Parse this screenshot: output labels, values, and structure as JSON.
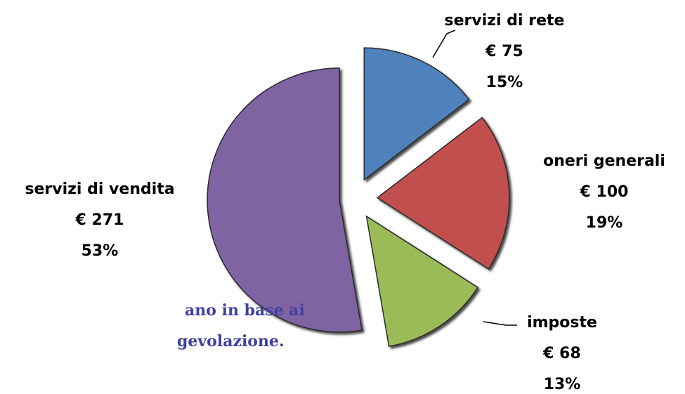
{
  "chart_data": {
    "type": "pie",
    "categories": [
      "servizi di rete",
      "oneri generali",
      "imposte",
      "servizi di vendita"
    ],
    "values": [
      75,
      100,
      68,
      271
    ],
    "value_labels": [
      "€ 75",
      "€ 100",
      "€ 68",
      "€ 271"
    ],
    "percentages": [
      15,
      19,
      13,
      53
    ],
    "percentage_labels": [
      "15%",
      "19%",
      "13%",
      "53%"
    ],
    "colors": [
      "#4f81bd",
      "#c0504d",
      "#9bbb59",
      "#8064a2"
    ],
    "annotations": [
      "ano in base  ai",
      "gevolazione."
    ]
  }
}
